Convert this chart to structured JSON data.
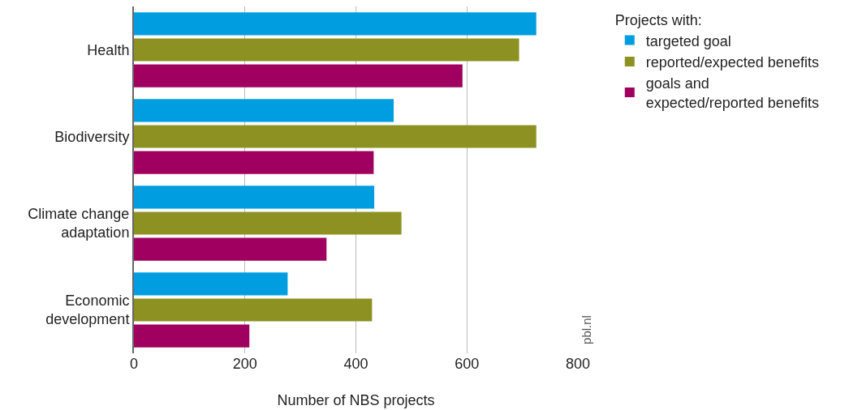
{
  "chart_data": {
    "type": "bar",
    "orientation": "horizontal",
    "xlabel": "Number of NBS projects",
    "legend_title": "Projects with:",
    "categories": [
      "Health",
      "Biodiversity",
      "Climate change\nadaptation",
      "Economic\ndevelopment"
    ],
    "series": [
      {
        "name": "targeted goal",
        "color": "#009ee0",
        "values": [
          725,
          468,
          433,
          277
        ]
      },
      {
        "name": "reported/expected benefits",
        "color": "#8c9121",
        "values": [
          694,
          725,
          482,
          429
        ]
      },
      {
        "name": "goals and\nexpected/reported benefits",
        "color": "#a0005f",
        "values": [
          592,
          432,
          347,
          208
        ]
      }
    ],
    "xlim": [
      0,
      800
    ],
    "xticks": [
      0,
      200,
      400,
      600,
      800
    ],
    "grid": "x",
    "legend": "top right",
    "annotations": [
      "pbl.nl"
    ]
  }
}
